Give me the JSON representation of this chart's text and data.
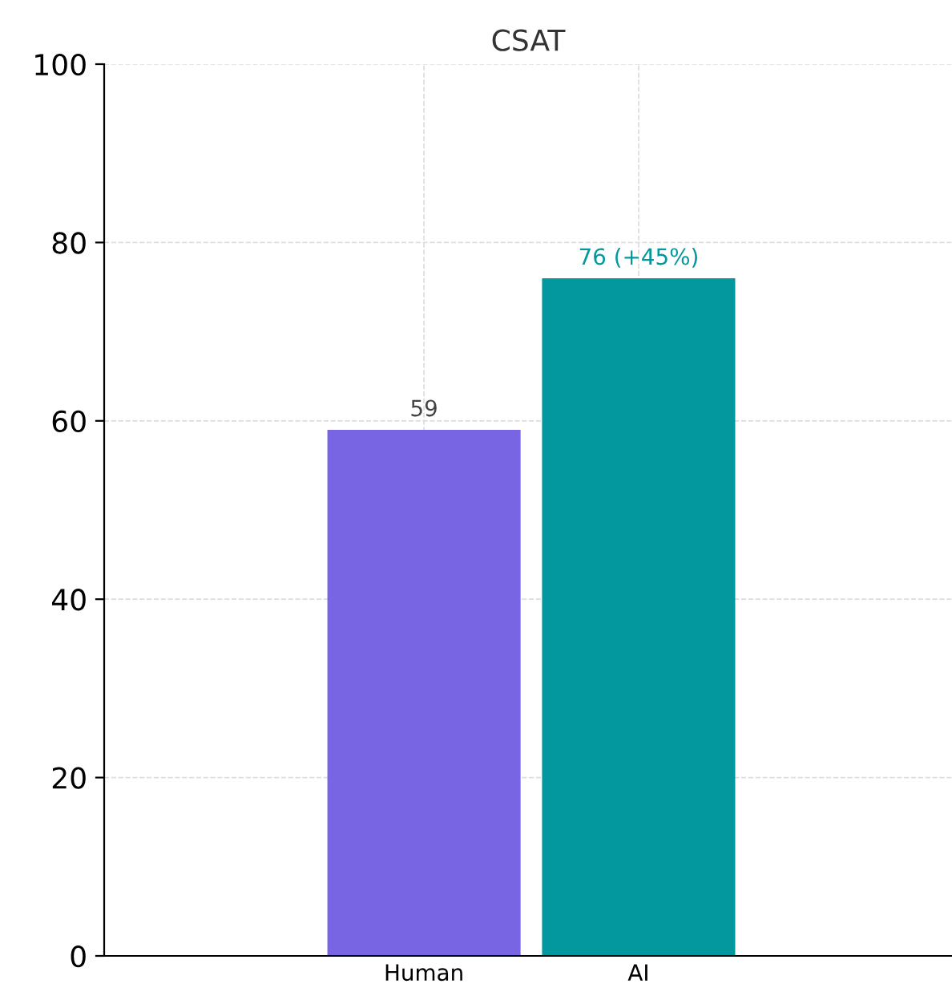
{
  "chart_data": {
    "type": "bar",
    "title": "CSAT",
    "categories": [
      "Human",
      "AI"
    ],
    "values": [
      59,
      76
    ],
    "colors": [
      "#7765e3",
      "#03989e"
    ],
    "value_labels": [
      "59",
      "76 (+45%)"
    ],
    "ylim": [
      0,
      100
    ],
    "yticks": [
      0,
      20,
      40,
      60,
      80,
      100
    ],
    "grid": true
  }
}
